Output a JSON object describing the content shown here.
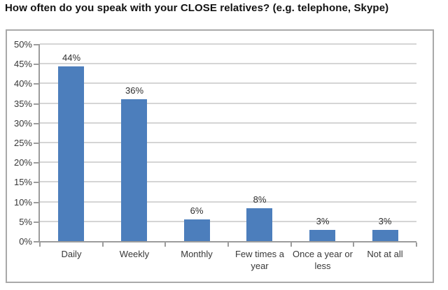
{
  "page": {
    "title": "How often do you speak with your CLOSE relatives? (e.g. telephone, Skype)"
  },
  "chart_data": {
    "type": "bar",
    "title": "How often do you speak with your CLOSE relatives? (e.g. telephone, Skype)",
    "categories": [
      "Daily",
      "Weekly",
      "Monthly",
      "Few times a year",
      "Once a year or less",
      "Not at all"
    ],
    "values": [
      44,
      36,
      6,
      8,
      3,
      3
    ],
    "value_labels": [
      "44%",
      "36%",
      "6%",
      "8%",
      "3%",
      "3%"
    ],
    "plotted_bar_heights_pct": [
      44.4,
      36.0,
      5.5,
      8.3,
      2.8,
      2.8
    ],
    "xlabel": "",
    "ylabel": "",
    "ylim": [
      0,
      50
    ],
    "ytick_step": 5,
    "ytick_labels": [
      "0%",
      "5%",
      "10%",
      "15%",
      "20%",
      "25%",
      "30%",
      "35%",
      "40%",
      "45%",
      "50%"
    ],
    "grid": true,
    "legend": false,
    "colors": {
      "bar": "#4c7ebc",
      "gridline": "#d5d5d5",
      "axis": "#9c9c9c",
      "text": "#383838",
      "frame_border": "#a9a9a9",
      "background": "#ffffff"
    }
  }
}
